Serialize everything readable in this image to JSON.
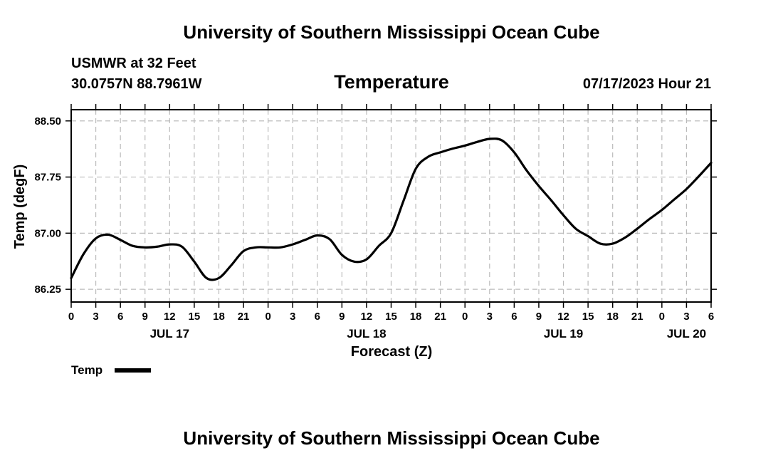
{
  "header": {
    "title": "University of Southern Mississippi Ocean Cube",
    "station": "USMWR at 32 Feet",
    "coords": "30.0757N  88.7961W",
    "chart_title": "Temperature",
    "datetime": "07/17/2023 Hour 21"
  },
  "footer": {
    "title": "University of Southern Mississippi Ocean Cube"
  },
  "colors": {
    "line": "#000000",
    "grid": "#bbbbbb",
    "axis": "#000000"
  },
  "chart_data": {
    "type": "line",
    "title": "Temperature",
    "xlabel": "Forecast (Z)",
    "ylabel": "Temp (degF)",
    "ylim": [
      86.08,
      88.65
    ],
    "xlim": [
      0,
      78
    ],
    "yticks": [
      86.25,
      87.0,
      87.75,
      88.5
    ],
    "ytick_labels": [
      "86.25",
      "87.00",
      "87.75",
      "88.50"
    ],
    "xticks": [
      0,
      3,
      6,
      9,
      12,
      15,
      18,
      21,
      24,
      27,
      30,
      33,
      36,
      39,
      42,
      45,
      48,
      51,
      54,
      57,
      60,
      63,
      66,
      69,
      72,
      75,
      78
    ],
    "xtick_labels": [
      "0",
      "3",
      "6",
      "9",
      "12",
      "15",
      "18",
      "21",
      "0",
      "3",
      "6",
      "9",
      "12",
      "15",
      "18",
      "21",
      "0",
      "3",
      "6",
      "9",
      "12",
      "15",
      "18",
      "21",
      "0",
      "3",
      "6"
    ],
    "date_labels": [
      {
        "label": "JUL 17",
        "hour": 12
      },
      {
        "label": "JUL 18",
        "hour": 36
      },
      {
        "label": "JUL 19",
        "hour": 60
      },
      {
        "label": "JUL 20",
        "hour": 75
      }
    ],
    "grid": true,
    "legend": {
      "position": "bottom-left",
      "entries": [
        "Temp"
      ]
    },
    "series": [
      {
        "name": "Temp",
        "x": [
          0,
          1.5,
          3,
          4.5,
          6,
          7.5,
          9,
          10.5,
          12,
          13.5,
          15,
          16.5,
          18,
          19.5,
          21,
          22.5,
          24,
          25.5,
          27,
          28.5,
          30,
          31.5,
          33,
          34.5,
          36,
          37.5,
          39,
          40.5,
          42,
          43.5,
          45,
          46.5,
          48,
          49.5,
          51,
          52.5,
          54,
          55.5,
          57,
          58.5,
          60,
          61.5,
          63,
          64.5,
          66,
          67.5,
          69,
          70.5,
          72,
          73.5,
          75,
          76.5,
          78
        ],
        "values": [
          86.4,
          86.72,
          86.93,
          86.98,
          86.91,
          86.83,
          86.81,
          86.82,
          86.85,
          86.82,
          86.62,
          86.4,
          86.4,
          86.57,
          86.76,
          86.81,
          86.81,
          86.81,
          86.85,
          86.91,
          86.97,
          86.92,
          86.71,
          86.62,
          86.65,
          86.83,
          87.0,
          87.43,
          87.86,
          88.02,
          88.08,
          88.13,
          88.17,
          88.22,
          88.26,
          88.24,
          88.08,
          87.84,
          87.63,
          87.44,
          87.24,
          87.06,
          86.96,
          86.86,
          86.86,
          86.94,
          87.06,
          87.19,
          87.31,
          87.45,
          87.59,
          87.76,
          87.94
        ]
      }
    ]
  }
}
